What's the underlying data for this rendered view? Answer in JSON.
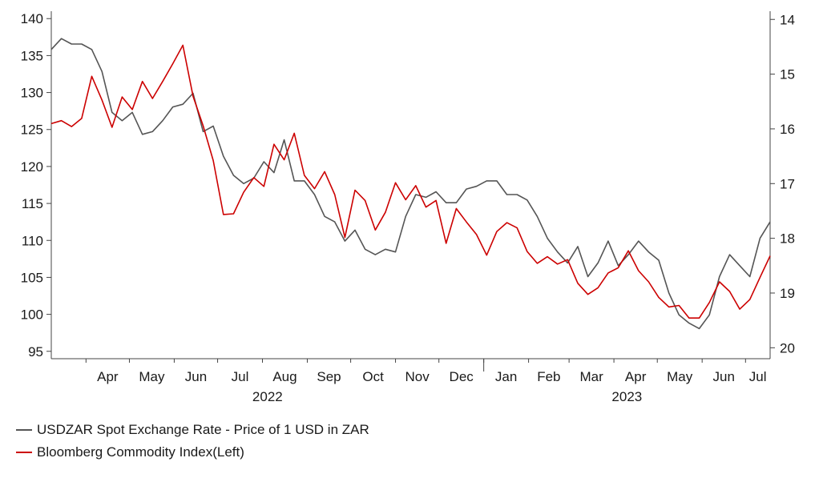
{
  "chart_data": {
    "type": "line",
    "title": "",
    "xlabel": "",
    "ylabel": "",
    "x_month_labels": [
      "Apr",
      "May",
      "Jun",
      "Jul",
      "Aug",
      "Sep",
      "Oct",
      "Nov",
      "Dec",
      "Jan",
      "Feb",
      "Mar",
      "Apr",
      "May",
      "Jun",
      "Jul"
    ],
    "x_year_labels": [
      "2022",
      "2023"
    ],
    "y_left": {
      "ticks": [
        140,
        135,
        130,
        125,
        120,
        115,
        110,
        105,
        100,
        95
      ],
      "ylim": [
        94,
        141
      ]
    },
    "y_right": {
      "ticks": [
        14,
        15,
        16,
        17,
        18,
        19,
        20
      ],
      "ylim": [
        13.85,
        20.2
      ],
      "inverted": true
    },
    "x_range": [
      "2022-03-08",
      "2023-07-18"
    ],
    "legend_position": "bottom-left",
    "grid": false,
    "series": [
      {
        "name": "USDZAR Spot Exchange Rate - Price of 1 USD in ZAR",
        "axis": "right",
        "color": "#555555",
        "data": [
          [
            "2022-03-08",
            14.55
          ],
          [
            "2022-03-15",
            14.35
          ],
          [
            "2022-03-22",
            14.45
          ],
          [
            "2022-03-29",
            14.45
          ],
          [
            "2022-04-05",
            14.55
          ],
          [
            "2022-04-12",
            14.95
          ],
          [
            "2022-04-19",
            15.7
          ],
          [
            "2022-04-26",
            15.85
          ],
          [
            "2022-05-03",
            15.7
          ],
          [
            "2022-05-10",
            16.1
          ],
          [
            "2022-05-17",
            16.05
          ],
          [
            "2022-05-24",
            15.85
          ],
          [
            "2022-05-31",
            15.6
          ],
          [
            "2022-06-07",
            15.55
          ],
          [
            "2022-06-14",
            15.35
          ],
          [
            "2022-06-21",
            16.05
          ],
          [
            "2022-06-28",
            15.95
          ],
          [
            "2022-07-05",
            16.5
          ],
          [
            "2022-07-12",
            16.85
          ],
          [
            "2022-07-19",
            17.0
          ],
          [
            "2022-07-26",
            16.9
          ],
          [
            "2022-08-02",
            16.6
          ],
          [
            "2022-08-09",
            16.8
          ],
          [
            "2022-08-16",
            16.2
          ],
          [
            "2022-08-23",
            16.95
          ],
          [
            "2022-08-30",
            16.95
          ],
          [
            "2022-09-06",
            17.2
          ],
          [
            "2022-09-13",
            17.6
          ],
          [
            "2022-09-20",
            17.7
          ],
          [
            "2022-09-27",
            18.05
          ],
          [
            "2022-10-04",
            17.85
          ],
          [
            "2022-10-11",
            18.2
          ],
          [
            "2022-10-18",
            18.3
          ],
          [
            "2022-10-25",
            18.2
          ],
          [
            "2022-11-01",
            18.25
          ],
          [
            "2022-11-08",
            17.6
          ],
          [
            "2022-11-15",
            17.2
          ],
          [
            "2022-11-22",
            17.25
          ],
          [
            "2022-11-29",
            17.15
          ],
          [
            "2022-12-06",
            17.35
          ],
          [
            "2022-12-13",
            17.35
          ],
          [
            "2022-12-20",
            17.1
          ],
          [
            "2022-12-27",
            17.05
          ],
          [
            "2023-01-03",
            16.95
          ],
          [
            "2023-01-10",
            16.95
          ],
          [
            "2023-01-17",
            17.2
          ],
          [
            "2023-01-24",
            17.2
          ],
          [
            "2023-01-31",
            17.3
          ],
          [
            "2023-02-07",
            17.6
          ],
          [
            "2023-02-14",
            18.0
          ],
          [
            "2023-02-21",
            18.25
          ],
          [
            "2023-02-28",
            18.45
          ],
          [
            "2023-03-07",
            18.15
          ],
          [
            "2023-03-14",
            18.7
          ],
          [
            "2023-03-21",
            18.45
          ],
          [
            "2023-03-28",
            18.05
          ],
          [
            "2023-04-04",
            18.5
          ],
          [
            "2023-04-11",
            18.3
          ],
          [
            "2023-04-18",
            18.05
          ],
          [
            "2023-04-25",
            18.25
          ],
          [
            "2023-05-02",
            18.4
          ],
          [
            "2023-05-09",
            19.0
          ],
          [
            "2023-05-16",
            19.4
          ],
          [
            "2023-05-23",
            19.55
          ],
          [
            "2023-05-30",
            19.65
          ],
          [
            "2023-06-06",
            19.4
          ],
          [
            "2023-06-13",
            18.7
          ],
          [
            "2023-06-20",
            18.3
          ],
          [
            "2023-06-27",
            18.5
          ],
          [
            "2023-07-04",
            18.7
          ],
          [
            "2023-07-11",
            18.0
          ],
          [
            "2023-07-18",
            17.7
          ]
        ]
      },
      {
        "name": "Bloomberg Commodity Index(Left)",
        "axis": "left",
        "color": "#cc0000",
        "data": [
          [
            "2022-03-08",
            125.8
          ],
          [
            "2022-03-15",
            126.2
          ],
          [
            "2022-03-22",
            125.4
          ],
          [
            "2022-03-29",
            126.5
          ],
          [
            "2022-04-05",
            132.2
          ],
          [
            "2022-04-12",
            129.0
          ],
          [
            "2022-04-19",
            125.3
          ],
          [
            "2022-04-26",
            129.4
          ],
          [
            "2022-05-03",
            127.7
          ],
          [
            "2022-05-10",
            131.5
          ],
          [
            "2022-05-17",
            129.2
          ],
          [
            "2022-05-24",
            131.5
          ],
          [
            "2022-05-31",
            133.9
          ],
          [
            "2022-06-07",
            136.4
          ],
          [
            "2022-06-14",
            129.5
          ],
          [
            "2022-06-21",
            125.5
          ],
          [
            "2022-06-28",
            120.8
          ],
          [
            "2022-07-05",
            113.5
          ],
          [
            "2022-07-12",
            113.6
          ],
          [
            "2022-07-19",
            116.5
          ],
          [
            "2022-07-26",
            118.5
          ],
          [
            "2022-08-02",
            117.3
          ],
          [
            "2022-08-09",
            123.0
          ],
          [
            "2022-08-16",
            120.9
          ],
          [
            "2022-08-23",
            124.5
          ],
          [
            "2022-08-30",
            118.8
          ],
          [
            "2022-09-06",
            117.0
          ],
          [
            "2022-09-13",
            119.3
          ],
          [
            "2022-09-20",
            116.2
          ],
          [
            "2022-09-27",
            110.4
          ],
          [
            "2022-10-04",
            116.8
          ],
          [
            "2022-10-11",
            115.4
          ],
          [
            "2022-10-18",
            111.4
          ],
          [
            "2022-10-25",
            113.8
          ],
          [
            "2022-11-01",
            117.8
          ],
          [
            "2022-11-08",
            115.5
          ],
          [
            "2022-11-15",
            117.4
          ],
          [
            "2022-11-22",
            114.5
          ],
          [
            "2022-11-29",
            115.4
          ],
          [
            "2022-12-06",
            109.6
          ],
          [
            "2022-12-13",
            114.3
          ],
          [
            "2022-12-20",
            112.5
          ],
          [
            "2022-12-27",
            110.8
          ],
          [
            "2023-01-03",
            108.0
          ],
          [
            "2023-01-10",
            111.2
          ],
          [
            "2023-01-17",
            112.4
          ],
          [
            "2023-01-24",
            111.7
          ],
          [
            "2023-01-31",
            108.5
          ],
          [
            "2023-02-07",
            106.9
          ],
          [
            "2023-02-14",
            107.8
          ],
          [
            "2023-02-21",
            106.8
          ],
          [
            "2023-02-28",
            107.4
          ],
          [
            "2023-03-07",
            104.2
          ],
          [
            "2023-03-14",
            102.7
          ],
          [
            "2023-03-21",
            103.6
          ],
          [
            "2023-03-28",
            105.6
          ],
          [
            "2023-04-04",
            106.3
          ],
          [
            "2023-04-11",
            108.6
          ],
          [
            "2023-04-18",
            105.9
          ],
          [
            "2023-04-25",
            104.4
          ],
          [
            "2023-05-02",
            102.3
          ],
          [
            "2023-05-09",
            101.0
          ],
          [
            "2023-05-16",
            101.2
          ],
          [
            "2023-05-23",
            99.5
          ],
          [
            "2023-05-30",
            99.5
          ],
          [
            "2023-06-06",
            101.6
          ],
          [
            "2023-06-13",
            104.4
          ],
          [
            "2023-06-20",
            103.1
          ],
          [
            "2023-06-27",
            100.7
          ],
          [
            "2023-07-04",
            102.0
          ],
          [
            "2023-07-11",
            105.0
          ],
          [
            "2023-07-18",
            107.9
          ]
        ]
      }
    ]
  }
}
